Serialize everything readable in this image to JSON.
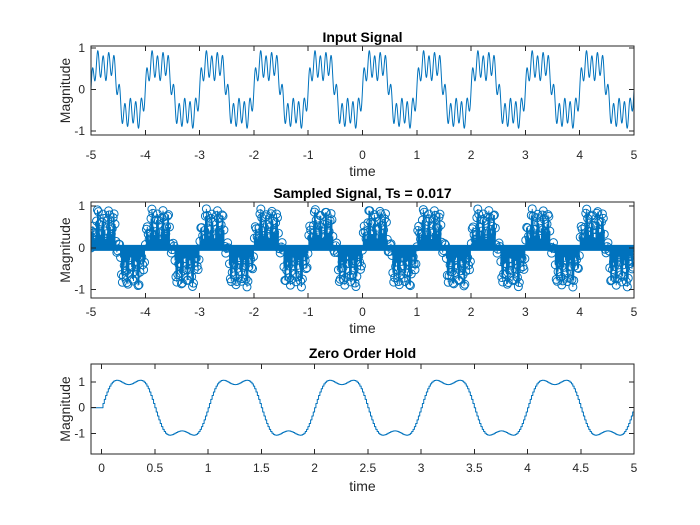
{
  "chart_data": [
    {
      "type": "line",
      "title": "Input Signal",
      "xlabel": "time",
      "ylabel": "Magnitude",
      "xlim": [
        -5,
        5
      ],
      "ylim": [
        -1.1,
        1.05
      ],
      "xticks": [
        -5,
        -4,
        -3,
        -2,
        -1,
        0,
        1,
        2,
        3,
        4,
        5
      ],
      "xtick_labels": [
        "-5",
        "-4",
        "-3",
        "-2",
        "-1",
        "0",
        "1",
        "2",
        "3",
        "4",
        "5"
      ],
      "yticks": [
        -1,
        0,
        1
      ],
      "ytick_labels": [
        "-1",
        "0",
        "1"
      ],
      "grid": false,
      "color": "#0072BD",
      "signal": "0.7*sin(2*pi*t) + 0.3*sin(20*pi*t) + 0.2*sin(6*pi*t), t from -5 to 5",
      "series": [
        {
          "x": [
            -5,
            -4.75,
            -4.5,
            -4.25,
            -4,
            -3.75,
            -3.5,
            -3.25,
            -3,
            -2.75,
            -2.5,
            -2.25,
            -2,
            -1.75,
            -1.5,
            -1.25,
            -1,
            -0.75,
            -0.5,
            -0.25,
            0,
            0.25,
            0.5,
            0.75,
            1,
            1.25,
            1.5,
            1.75,
            2,
            2.25,
            2.5,
            2.75,
            3,
            3.25,
            3.5,
            3.75,
            4,
            4.25,
            4.5,
            4.75,
            5
          ],
          "y": [
            0,
            0.8,
            0,
            -0.8,
            0,
            0.8,
            0,
            -0.8,
            0,
            0.8,
            0,
            -0.8,
            0,
            0.8,
            0,
            -0.8,
            0,
            0.8,
            0,
            -0.8,
            0,
            0.8,
            0,
            -0.8,
            0,
            0.8,
            0,
            -0.8,
            0,
            0.8,
            0,
            -0.8,
            0,
            0.8,
            0,
            -0.8,
            0,
            0.8,
            0,
            -0.8,
            0
          ]
        }
      ]
    },
    {
      "type": "scatter",
      "title": "Sampled Signal, Ts = 0.017",
      "xlabel": "time",
      "ylabel": "Magnitude",
      "xlim": [
        -5,
        5
      ],
      "ylim": [
        -1.2,
        1.1
      ],
      "xticks": [
        -5,
        -4,
        -3,
        -2,
        -1,
        0,
        1,
        2,
        3,
        4,
        5
      ],
      "xtick_labels": [
        "-5",
        "-4",
        "-3",
        "-2",
        "-1",
        "0",
        "1",
        "2",
        "3",
        "4",
        "5"
      ],
      "yticks": [
        -1,
        0,
        1
      ],
      "ytick_labels": [
        "-1",
        "0",
        "1"
      ],
      "grid": false,
      "color": "#0072BD",
      "style": "stem with circle markers",
      "sample_period": 0.017,
      "signal": "samples of 0.7*sin(2*pi*t) + 0.3*sin(20*pi*t) + 0.2*sin(6*pi*t), t from -5 to 5 step 0.017"
    },
    {
      "type": "line",
      "title": "Zero Order Hold",
      "xlabel": "time",
      "ylabel": "Magnitude",
      "xlim": [
        -0.1,
        5
      ],
      "ylim": [
        -1.8,
        1.7
      ],
      "xticks": [
        0,
        0.5,
        1,
        1.5,
        2,
        2.5,
        3,
        3.5,
        4,
        4.5,
        5
      ],
      "xtick_labels": [
        "0",
        "0.5",
        "1",
        "1.5",
        "2",
        "2.5",
        "3",
        "3.5",
        "4",
        "4.5",
        "5"
      ],
      "yticks": [
        -1,
        0,
        1
      ],
      "ytick_labels": [
        "-1",
        "0",
        "1"
      ],
      "grid": false,
      "color": "#0072BD",
      "style": "staircase",
      "signal": "zero-order hold of 1.2*sin(2*pi*t) + 0.3*sin(6*pi*t) + 0.15*sin(80*pi*t), starting at 0 with a flat segment from t = -0.1"
    }
  ]
}
